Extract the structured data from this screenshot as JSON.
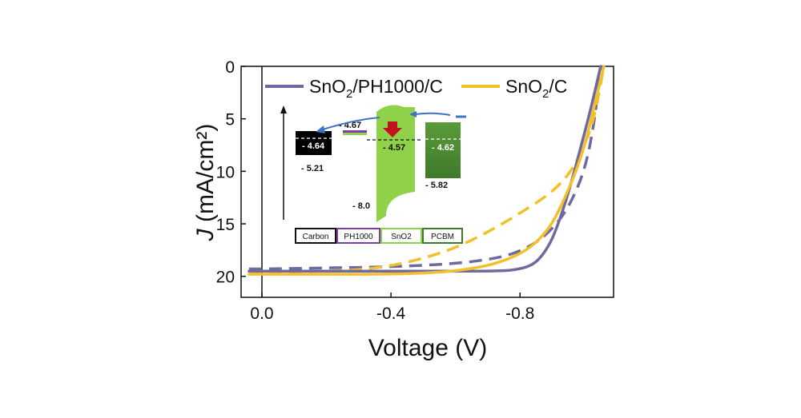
{
  "chart_data": {
    "type": "line",
    "xlabel": "Voltage (V)",
    "ylabel_italic": "J",
    "ylabel_rest": " (mA/cm²)",
    "xlim": [
      0.05,
      -1.09
    ],
    "ylim": [
      0,
      22
    ],
    "x_ticks": [
      {
        "v": 0,
        "label": "0.0"
      },
      {
        "v": -0.4,
        "label": "-0.4"
      },
      {
        "v": -0.8,
        "label": "-0.8"
      }
    ],
    "y_ticks": [
      {
        "v": 0,
        "label": "0"
      },
      {
        "v": 5,
        "label": "5"
      },
      {
        "v": 10,
        "label": "10"
      },
      {
        "v": 15,
        "label": "15"
      },
      {
        "v": 20,
        "label": "20"
      }
    ],
    "series": [
      {
        "name": "SnO2/PH1000/C",
        "legend_main": "SnO",
        "legend_sub": "2",
        "legend_tail": "/PH1000/C",
        "color": "#6e6aa0",
        "dash": false,
        "points": [
          [
            0.04,
            19.5
          ],
          [
            0,
            19.5
          ],
          [
            -0.2,
            19.5
          ],
          [
            -0.4,
            19.5
          ],
          [
            -0.6,
            19.5
          ],
          [
            -0.75,
            19.5
          ],
          [
            -0.8,
            19.3
          ],
          [
            -0.84,
            18.9
          ],
          [
            -0.87,
            18.0
          ],
          [
            -0.9,
            16.5
          ],
          [
            -0.93,
            14.0
          ],
          [
            -0.96,
            11.0
          ],
          [
            -0.99,
            7.5
          ],
          [
            -1.02,
            4.0
          ],
          [
            -1.05,
            0
          ]
        ]
      },
      {
        "name": "SnO2/PH1000/C reverse",
        "color": "#6e6aa0",
        "dash": true,
        "points": [
          [
            0.04,
            19.3
          ],
          [
            0,
            19.3
          ],
          [
            -0.2,
            19.2
          ],
          [
            -0.4,
            19.1
          ],
          [
            -0.6,
            18.8
          ],
          [
            -0.7,
            18.4
          ],
          [
            -0.75,
            18.1
          ],
          [
            -0.8,
            17.6
          ],
          [
            -0.85,
            16.8
          ],
          [
            -0.9,
            15.5
          ],
          [
            -0.95,
            13.5
          ],
          [
            -1.0,
            10.0
          ],
          [
            -1.03,
            5.5
          ],
          [
            -1.05,
            0
          ]
        ]
      },
      {
        "name": "SnO2/C",
        "legend_main": "SnO",
        "legend_sub": "2",
        "legend_tail": "/C",
        "color": "#f3bf2a",
        "dash": false,
        "points": [
          [
            0.04,
            19.8
          ],
          [
            0,
            19.8
          ],
          [
            -0.2,
            19.8
          ],
          [
            -0.4,
            19.8
          ],
          [
            -0.5,
            19.7
          ],
          [
            -0.6,
            19.5
          ],
          [
            -0.7,
            19.0
          ],
          [
            -0.77,
            18.3
          ],
          [
            -0.82,
            17.5
          ],
          [
            -0.86,
            16.5
          ],
          [
            -0.9,
            15.0
          ],
          [
            -0.94,
            12.5
          ],
          [
            -0.98,
            9.5
          ],
          [
            -1.01,
            6.5
          ],
          [
            -1.04,
            2.5
          ],
          [
            -1.06,
            0
          ]
        ]
      },
      {
        "name": "SnO2/C reverse",
        "color": "#f3bf2a",
        "dash": true,
        "points": [
          [
            0.04,
            19.6
          ],
          [
            0,
            19.6
          ],
          [
            -0.2,
            19.5
          ],
          [
            -0.3,
            19.4
          ],
          [
            -0.4,
            19.0
          ],
          [
            -0.5,
            18.3
          ],
          [
            -0.6,
            17.3
          ],
          [
            -0.7,
            15.8
          ],
          [
            -0.8,
            14.0
          ],
          [
            -0.9,
            12.0
          ],
          [
            -0.96,
            10.0
          ],
          [
            -1.0,
            7.5
          ],
          [
            -1.03,
            5.0
          ],
          [
            -1.06,
            0
          ]
        ]
      }
    ]
  },
  "inset": {
    "materials": [
      {
        "label": "Carbon",
        "color": "#111111"
      },
      {
        "label": "PH1000",
        "color": "#7a3fa8"
      },
      {
        "label": "SnO2",
        "color": "#8fd24a"
      },
      {
        "label": "PCBM",
        "color": "#3f7a2a"
      }
    ],
    "levels": {
      "carbon_fermi": "- 4.64",
      "carbon_bottom": "- 5.21",
      "ph1000": "- 4.67",
      "sno2_fermi": "- 4.57",
      "sno2_bottom": "- 8.0",
      "pcbm_fermi": "- 4.62",
      "pcbm_bottom": "- 5.82"
    }
  }
}
